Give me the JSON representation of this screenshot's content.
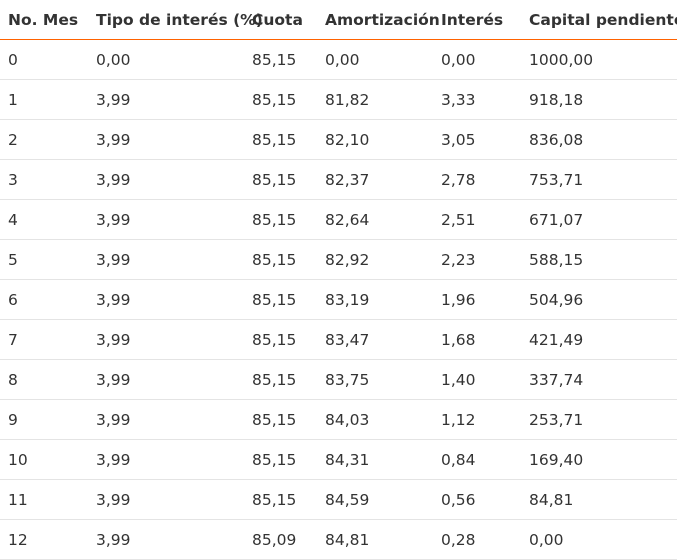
{
  "accent_color": "#ff6200",
  "text_color": "#333333",
  "divider_color": "#e4e4e4",
  "table": {
    "headers": [
      "No. Mes",
      "Tipo de interés (%)",
      "Cuota",
      "Amortización",
      "Interés",
      "Capital pendiente"
    ],
    "rows": [
      [
        "0",
        "0,00",
        "85,15",
        "0,00",
        "0,00",
        "1000,00"
      ],
      [
        "1",
        "3,99",
        "85,15",
        "81,82",
        "3,33",
        "918,18"
      ],
      [
        "2",
        "3,99",
        "85,15",
        "82,10",
        "3,05",
        "836,08"
      ],
      [
        "3",
        "3,99",
        "85,15",
        "82,37",
        "2,78",
        "753,71"
      ],
      [
        "4",
        "3,99",
        "85,15",
        "82,64",
        "2,51",
        "671,07"
      ],
      [
        "5",
        "3,99",
        "85,15",
        "82,92",
        "2,23",
        "588,15"
      ],
      [
        "6",
        "3,99",
        "85,15",
        "83,19",
        "1,96",
        "504,96"
      ],
      [
        "7",
        "3,99",
        "85,15",
        "83,47",
        "1,68",
        "421,49"
      ],
      [
        "8",
        "3,99",
        "85,15",
        "83,75",
        "1,40",
        "337,74"
      ],
      [
        "9",
        "3,99",
        "85,15",
        "84,03",
        "1,12",
        "253,71"
      ],
      [
        "10",
        "3,99",
        "85,15",
        "84,31",
        "0,84",
        "169,40"
      ],
      [
        "11",
        "3,99",
        "85,15",
        "84,59",
        "0,56",
        "84,81"
      ],
      [
        "12",
        "3,99",
        "85,09",
        "84,81",
        "0,28",
        "0,00"
      ]
    ]
  }
}
